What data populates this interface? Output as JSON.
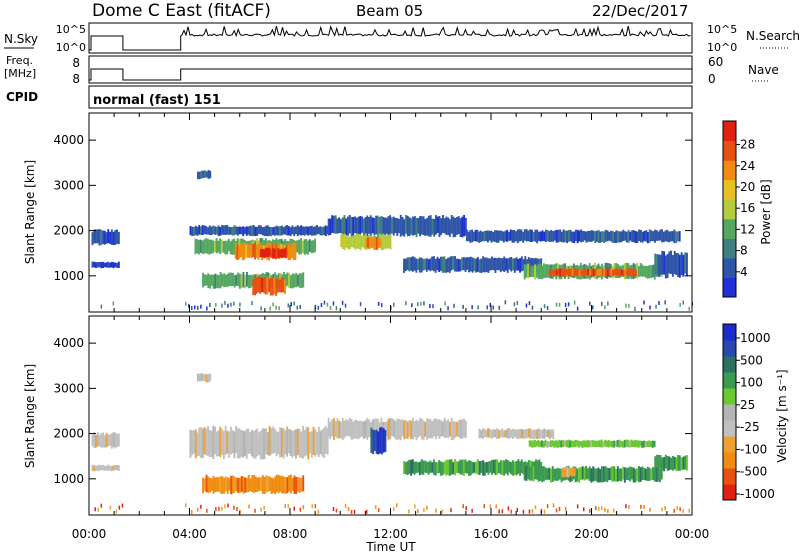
{
  "header": {
    "title": "Dome C East (fitACF)",
    "beam": "Beam 05",
    "date": "22/Dec/2017"
  },
  "top_panels": {
    "nsky": {
      "label": "N.Sky",
      "left_ticks": [
        "10^5",
        "10^0"
      ],
      "right_ticks": [
        "10^5",
        "10^0"
      ],
      "right_label": "N.Search"
    },
    "freq": {
      "label_line1": "Freq.",
      "label_line2": "[MHz]",
      "left_ticks": [
        "8",
        "8"
      ],
      "right_ticks": [
        "60",
        "0"
      ],
      "right_label": "Nave"
    },
    "cpid": {
      "label": "CPID",
      "value": "normal (fast) 151"
    }
  },
  "colors": {
    "power": [
      "#2030d8",
      "#2e55a8",
      "#3f7f80",
      "#55a860",
      "#b4cc3c",
      "#e8c020",
      "#f08c10",
      "#e85010",
      "#e02010"
    ],
    "velocity": [
      "#e02010",
      "#e85010",
      "#f08c10",
      "#f0a030",
      "#c0c0c0",
      "#b4b4b4",
      "#6cc830",
      "#3a9a50",
      "#2e7060",
      "#2848b0",
      "#1c2cc8"
    ]
  },
  "chart_data": [
    {
      "type": "heatmap",
      "name": "power-panel",
      "xlabel": "",
      "ylabel": "Slant Range [km]",
      "xlim_hours": [
        0,
        24
      ],
      "ylim": [
        200,
        4600
      ],
      "yticks": [
        1000,
        2000,
        3000,
        4000
      ],
      "colorbar": {
        "label": "Power [dB]",
        "ticks": [
          "4",
          "8",
          "12",
          "16",
          "20",
          "24",
          "28"
        ]
      },
      "patches": [
        {
          "t0": 0.1,
          "t1": 1.2,
          "r0": 1700,
          "r1": 2000,
          "c": 1
        },
        {
          "t0": 0.1,
          "t1": 1.2,
          "r0": 1180,
          "r1": 1300,
          "c": 0
        },
        {
          "t0": 4.3,
          "t1": 4.8,
          "r0": 3150,
          "r1": 3320,
          "c": 1
        },
        {
          "t0": 4.0,
          "t1": 9.5,
          "r0": 1900,
          "r1": 2100,
          "c": 1
        },
        {
          "t0": 4.2,
          "t1": 9.0,
          "r0": 1500,
          "r1": 1800,
          "c": 3
        },
        {
          "t0": 5.8,
          "t1": 8.2,
          "r0": 1380,
          "r1": 1700,
          "c": 6
        },
        {
          "t0": 6.8,
          "t1": 7.8,
          "r0": 1400,
          "r1": 1600,
          "c": 8
        },
        {
          "t0": 4.5,
          "t1": 8.5,
          "r0": 750,
          "r1": 1050,
          "c": 3
        },
        {
          "t0": 6.5,
          "t1": 7.8,
          "r0": 600,
          "r1": 950,
          "c": 7
        },
        {
          "t0": 9.5,
          "t1": 15.0,
          "r0": 1900,
          "r1": 2300,
          "c": 1
        },
        {
          "t0": 10.0,
          "t1": 12.0,
          "r0": 1600,
          "r1": 1900,
          "c": 4
        },
        {
          "t0": 11.0,
          "t1": 11.6,
          "r0": 1600,
          "r1": 1850,
          "c": 6
        },
        {
          "t0": 12.5,
          "t1": 18.0,
          "r0": 1100,
          "r1": 1400,
          "c": 1
        },
        {
          "t0": 15.0,
          "t1": 23.5,
          "r0": 1750,
          "r1": 2000,
          "c": 1
        },
        {
          "t0": 17.3,
          "t1": 22.8,
          "r0": 950,
          "r1": 1250,
          "c": 3
        },
        {
          "t0": 18.3,
          "t1": 21.8,
          "r0": 1000,
          "r1": 1150,
          "c": 7
        },
        {
          "t0": 22.5,
          "t1": 23.8,
          "r0": 1000,
          "r1": 1500,
          "c": 1
        }
      ]
    },
    {
      "type": "heatmap",
      "name": "velocity-panel",
      "xlabel": "Time UT",
      "ylabel": "Slant Range [km]",
      "xlim_hours": [
        0,
        24
      ],
      "ylim": [
        200,
        4600
      ],
      "yticks": [
        1000,
        2000,
        3000,
        4000
      ],
      "xticks": [
        "00:00",
        "04:00",
        "08:00",
        "12:00",
        "16:00",
        "20:00",
        "00:00"
      ],
      "colorbar": {
        "label": "Velocity [m s⁻¹]",
        "ticks": [
          "1000",
          "500",
          "100",
          "25",
          "-25",
          "-100",
          "-500",
          "-1000"
        ]
      },
      "patches": [
        {
          "t0": 0.1,
          "t1": 1.2,
          "r0": 1700,
          "r1": 2000,
          "c": 4
        },
        {
          "t0": 0.1,
          "t1": 1.2,
          "r0": 1180,
          "r1": 1300,
          "c": 4
        },
        {
          "t0": 4.3,
          "t1": 4.8,
          "r0": 3150,
          "r1": 3320,
          "c": 4
        },
        {
          "t0": 4.0,
          "t1": 9.5,
          "r0": 1500,
          "r1": 2100,
          "c": 4
        },
        {
          "t0": 4.5,
          "t1": 8.5,
          "r0": 700,
          "r1": 1050,
          "c": 2
        },
        {
          "t0": 9.5,
          "t1": 15.0,
          "r0": 1900,
          "r1": 2300,
          "c": 4
        },
        {
          "t0": 11.2,
          "t1": 11.8,
          "r0": 1600,
          "r1": 2100,
          "c": 9
        },
        {
          "t0": 12.5,
          "t1": 18.0,
          "r0": 1100,
          "r1": 1400,
          "c": 7
        },
        {
          "t0": 15.5,
          "t1": 18.5,
          "r0": 1900,
          "r1": 2100,
          "c": 4
        },
        {
          "t0": 17.5,
          "t1": 22.5,
          "r0": 1700,
          "r1": 1850,
          "c": 6
        },
        {
          "t0": 17.3,
          "t1": 22.8,
          "r0": 950,
          "r1": 1250,
          "c": 7
        },
        {
          "t0": 18.8,
          "t1": 19.3,
          "r0": 1050,
          "r1": 1250,
          "c": 3
        },
        {
          "t0": 22.5,
          "t1": 23.8,
          "r0": 1200,
          "r1": 1500,
          "c": 7
        }
      ]
    }
  ]
}
